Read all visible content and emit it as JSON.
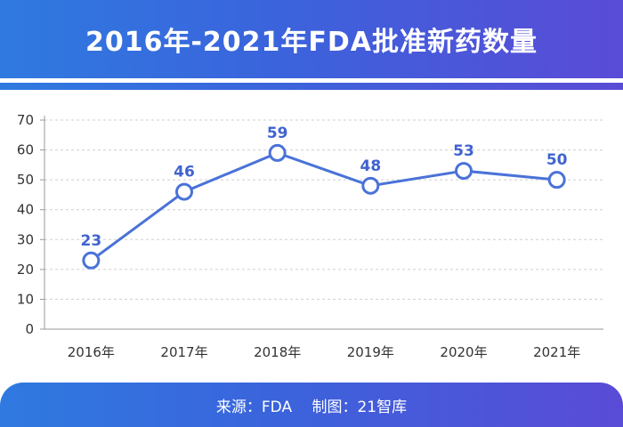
{
  "header": {
    "title": "2016年-2021年FDA批准新药数量"
  },
  "footer": {
    "source_text": "来源：FDA　 制图：21智库"
  },
  "colors": {
    "line": "#4a72d8",
    "marker_fill": "#ffffff",
    "label": "#3f63cf",
    "grid": "#cfcfcf"
  },
  "chart_data": {
    "type": "line",
    "title": "2016年-2021年FDA批准新药数量",
    "categories": [
      "2016年",
      "2017年",
      "2018年",
      "2019年",
      "2020年",
      "2021年"
    ],
    "values": [
      23,
      46,
      59,
      48,
      53,
      50
    ],
    "data_labels": [
      "23",
      "46",
      "59",
      "48",
      "53",
      "50"
    ],
    "ylim": [
      0,
      70
    ],
    "yticks": [
      0,
      10,
      20,
      30,
      40,
      50,
      60,
      70
    ],
    "ytick_labels": [
      "0",
      "10",
      "20",
      "30",
      "40",
      "50",
      "60",
      "70"
    ],
    "xlabel": "",
    "ylabel": "",
    "grid": true
  }
}
